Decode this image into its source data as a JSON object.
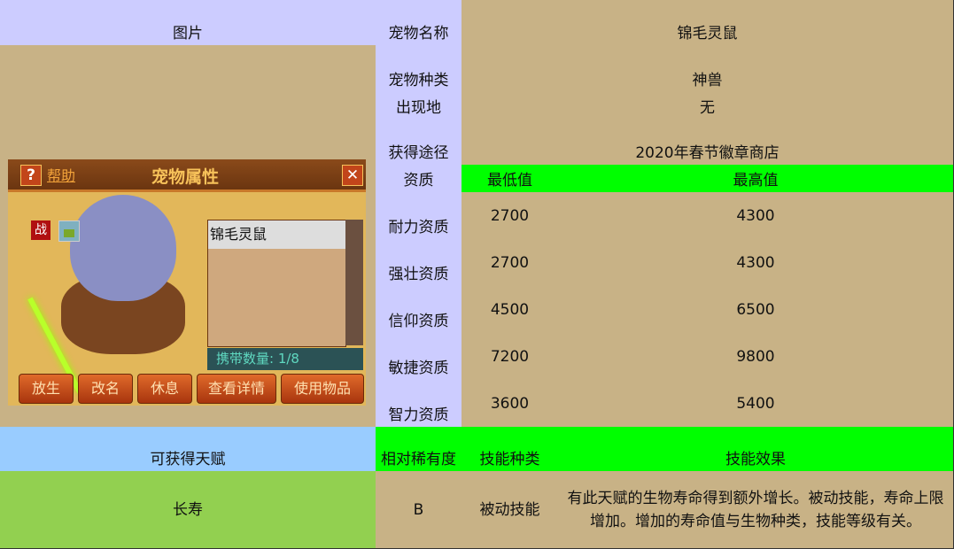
{
  "header": {
    "image_label": "图片",
    "pet_name_label": "宠物名称",
    "pet_name": "锦毛灵鼠",
    "pet_type_label": "宠物种类",
    "pet_type": "神兽",
    "location_label": "出现地",
    "location": "无",
    "source_label": "获得途径",
    "source": "2020年春节徽章商店"
  },
  "aptitude": {
    "header": [
      "资质",
      "最低值",
      "最高值"
    ],
    "rows": [
      {
        "name": "耐力资质",
        "min": "2700",
        "max": "4300"
      },
      {
        "name": "强壮资质",
        "min": "2700",
        "max": "4300"
      },
      {
        "name": "信仰资质",
        "min": "4500",
        "max": "6500"
      },
      {
        "name": "敏捷资质",
        "min": "7200",
        "max": "9800"
      },
      {
        "name": "智力资质",
        "min": "3600",
        "max": "5400"
      }
    ]
  },
  "talent": {
    "header": [
      "可获得天赋",
      "相对稀有度",
      "技能种类",
      "技能效果"
    ],
    "rows": [
      {
        "name": "长寿",
        "rarity": "B",
        "type": "被动技能",
        "effect": "有此天赋的生物寿命得到额外增长。被动技能，寿命上限增加。增加的寿命值与生物种类，技能等级有关。"
      }
    ]
  },
  "game": {
    "help": "帮助",
    "title": "宠物属性",
    "badge": "战",
    "list_item": "锦毛灵鼠",
    "count": "携带数量: 1/8",
    "buttons": [
      "放生",
      "改名",
      "休息",
      "查看详情",
      "使用物品"
    ]
  },
  "colors": {
    "lavender": "#ccccff",
    "tan": "#c8b286",
    "green": "#00ff00",
    "blue": "#99ccff",
    "lightgreen": "#92d050"
  }
}
